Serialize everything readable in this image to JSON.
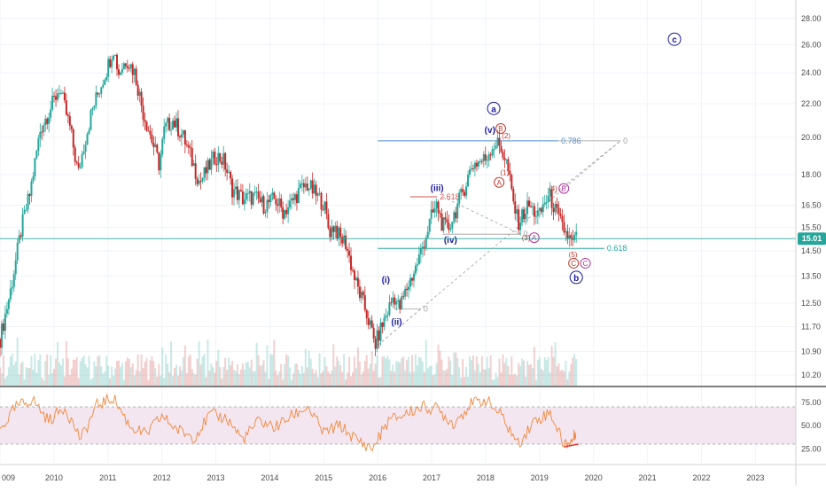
{
  "colors": {
    "up": "#26a69a",
    "down": "#c62828",
    "price_badge": "#26a69a",
    "rsi": "#f0883e",
    "rsi_band": "#f3e6f0",
    "wave_blue": "#1a1aa0",
    "wave_red": "#c0392b",
    "wave_pink": "#b03aa0",
    "fib_786": "#4f8fcf",
    "fib_618": "#26a69a",
    "fib_261": "#d9534f",
    "grid": "#f0f3fa"
  },
  "chart_data": {
    "type": "candlestick",
    "title": "",
    "x_axis": {
      "ticks": [
        "009",
        "2010",
        "2011",
        "2012",
        "2013",
        "2014",
        "2015",
        "2016",
        "2017",
        "2018",
        "2019",
        "2020",
        "2021",
        "2022",
        "2023"
      ],
      "tick_years": [
        2009.0,
        2010.0,
        2011.0,
        2012.0,
        2013.0,
        2014.0,
        2015.0,
        2016.0,
        2017.0,
        2018.0,
        2019.0,
        2020.0,
        2021.0,
        2022.0,
        2023.0
      ]
    },
    "price_axis": {
      "scale": "log",
      "range": [
        9.9,
        29.5
      ],
      "ticks": [
        "28.00",
        "26.00",
        "24.00",
        "22.00",
        "20.00",
        "18.00",
        "16.50",
        "15.50",
        "14.50",
        "13.50",
        "12.50",
        "11.70",
        "10.90",
        "10.20"
      ]
    },
    "last_price": {
      "value": 15.01,
      "label": "15.01"
    },
    "price_path": [
      {
        "x": 2009.0,
        "y": 11.3
      },
      {
        "x": 2009.2,
        "y": 13.0
      },
      {
        "x": 2009.4,
        "y": 15.5
      },
      {
        "x": 2009.55,
        "y": 17.0
      },
      {
        "x": 2009.75,
        "y": 20.5
      },
      {
        "x": 2009.95,
        "y": 21.8
      },
      {
        "x": 2010.1,
        "y": 23.0
      },
      {
        "x": 2010.3,
        "y": 20.5
      },
      {
        "x": 2010.45,
        "y": 18.0
      },
      {
        "x": 2010.55,
        "y": 19.5
      },
      {
        "x": 2010.7,
        "y": 21.5
      },
      {
        "x": 2010.85,
        "y": 23.0
      },
      {
        "x": 2011.0,
        "y": 24.5
      },
      {
        "x": 2011.1,
        "y": 25.8
      },
      {
        "x": 2011.2,
        "y": 24.0
      },
      {
        "x": 2011.35,
        "y": 25.0
      },
      {
        "x": 2011.5,
        "y": 24.0
      },
      {
        "x": 2011.65,
        "y": 21.5
      },
      {
        "x": 2011.8,
        "y": 20.0
      },
      {
        "x": 2011.95,
        "y": 18.5
      },
      {
        "x": 2012.05,
        "y": 20.5
      },
      {
        "x": 2012.2,
        "y": 21.0
      },
      {
        "x": 2012.4,
        "y": 20.0
      },
      {
        "x": 2012.55,
        "y": 18.8
      },
      {
        "x": 2012.7,
        "y": 17.6
      },
      {
        "x": 2012.85,
        "y": 18.3
      },
      {
        "x": 2013.0,
        "y": 19.0
      },
      {
        "x": 2013.15,
        "y": 18.7
      },
      {
        "x": 2013.3,
        "y": 17.3
      },
      {
        "x": 2013.5,
        "y": 16.8
      },
      {
        "x": 2013.7,
        "y": 16.9
      },
      {
        "x": 2013.9,
        "y": 16.5
      },
      {
        "x": 2014.1,
        "y": 16.8
      },
      {
        "x": 2014.25,
        "y": 16.2
      },
      {
        "x": 2014.4,
        "y": 16.6
      },
      {
        "x": 2014.55,
        "y": 17.2
      },
      {
        "x": 2014.7,
        "y": 17.5
      },
      {
        "x": 2014.85,
        "y": 17.0
      },
      {
        "x": 2015.0,
        "y": 16.6
      },
      {
        "x": 2015.1,
        "y": 15.3
      },
      {
        "x": 2015.2,
        "y": 15.6
      },
      {
        "x": 2015.3,
        "y": 15.0
      },
      {
        "x": 2015.4,
        "y": 14.9
      },
      {
        "x": 2015.5,
        "y": 14.0
      },
      {
        "x": 2015.6,
        "y": 13.2
      },
      {
        "x": 2015.75,
        "y": 12.4
      },
      {
        "x": 2015.85,
        "y": 11.8
      },
      {
        "x": 2015.95,
        "y": 11.1
      },
      {
        "x": 2016.05,
        "y": 11.6
      },
      {
        "x": 2016.2,
        "y": 12.3
      },
      {
        "x": 2016.3,
        "y": 12.8
      },
      {
        "x": 2016.4,
        "y": 12.3
      },
      {
        "x": 2016.55,
        "y": 13.1
      },
      {
        "x": 2016.7,
        "y": 13.8
      },
      {
        "x": 2016.85,
        "y": 14.8
      },
      {
        "x": 2017.0,
        "y": 16.0
      },
      {
        "x": 2017.1,
        "y": 16.5
      },
      {
        "x": 2017.2,
        "y": 15.6
      },
      {
        "x": 2017.3,
        "y": 15.4
      },
      {
        "x": 2017.45,
        "y": 16.3
      },
      {
        "x": 2017.6,
        "y": 17.3
      },
      {
        "x": 2017.75,
        "y": 18.5
      },
      {
        "x": 2017.9,
        "y": 18.7
      },
      {
        "x": 2018.0,
        "y": 18.8
      },
      {
        "x": 2018.1,
        "y": 19.4
      },
      {
        "x": 2018.2,
        "y": 19.7
      },
      {
        "x": 2018.3,
        "y": 19.3
      },
      {
        "x": 2018.4,
        "y": 18.5
      },
      {
        "x": 2018.5,
        "y": 16.8
      },
      {
        "x": 2018.6,
        "y": 15.7
      },
      {
        "x": 2018.7,
        "y": 16.1
      },
      {
        "x": 2018.8,
        "y": 16.5
      },
      {
        "x": 2018.9,
        "y": 16.2
      },
      {
        "x": 2019.0,
        "y": 16.0
      },
      {
        "x": 2019.1,
        "y": 16.7
      },
      {
        "x": 2019.2,
        "y": 16.9
      },
      {
        "x": 2019.3,
        "y": 16.2
      },
      {
        "x": 2019.4,
        "y": 15.6
      },
      {
        "x": 2019.5,
        "y": 15.2
      },
      {
        "x": 2019.6,
        "y": 14.8
      },
      {
        "x": 2019.68,
        "y": 15.01
      }
    ],
    "fib_levels": [
      {
        "label": "0.786",
        "value": 19.8,
        "x_start": 2016.0,
        "x_end": 2019.35,
        "color_key": "fib_786"
      },
      {
        "label": "0.618",
        "value": 14.6,
        "x_start": 2016.0,
        "x_end": 2020.2,
        "color_key": "fib_618"
      },
      {
        "label": "2.618",
        "value": 16.9,
        "x_start": 2016.6,
        "x_end": 2017.1,
        "color_key": "fib_261"
      },
      {
        "label": "0",
        "value": 19.8,
        "x_start": 2019.35,
        "x_end": 2020.5,
        "color_key": "grid"
      },
      {
        "label": "0",
        "value": 15.2,
        "x_start": 2017.2,
        "x_end": 2018.65,
        "color_key": "grid"
      },
      {
        "label": "0",
        "value": 12.3,
        "x_start": 2016.3,
        "x_end": 2016.8,
        "color_key": "grid"
      }
    ],
    "wave_labels": [
      {
        "text": "a",
        "x": 2018.15,
        "y": 21.7,
        "style": "circle-blue"
      },
      {
        "text": "(v)",
        "x": 2018.08,
        "y": 20.4,
        "style": "blue"
      },
      {
        "text": "B",
        "x": 2018.28,
        "y": 20.5,
        "style": "circle-red"
      },
      {
        "text": "(2)",
        "x": 2018.38,
        "y": 20.1,
        "style": "red"
      },
      {
        "text": "(1)",
        "x": 2018.35,
        "y": 18.1,
        "style": "red"
      },
      {
        "text": "A",
        "x": 2018.25,
        "y": 17.6,
        "style": "circle-red"
      },
      {
        "text": "(iii)",
        "x": 2017.1,
        "y": 17.3,
        "style": "blue"
      },
      {
        "text": "(iv)",
        "x": 2017.35,
        "y": 14.95,
        "style": "blue"
      },
      {
        "text": "(i)",
        "x": 2016.15,
        "y": 13.35,
        "style": "blue"
      },
      {
        "text": "(ii)",
        "x": 2016.35,
        "y": 11.85,
        "style": "blue"
      },
      {
        "text": "(3)",
        "x": 2018.75,
        "y": 15.05,
        "style": "red"
      },
      {
        "text": "A",
        "x": 2018.9,
        "y": 15.05,
        "style": "circle-pink"
      },
      {
        "text": "(4)",
        "x": 2019.25,
        "y": 17.3,
        "style": "red"
      },
      {
        "text": "B",
        "x": 2019.45,
        "y": 17.3,
        "style": "circle-pink"
      },
      {
        "text": "(5)",
        "x": 2019.62,
        "y": 14.35,
        "style": "red"
      },
      {
        "text": "C",
        "x": 2019.63,
        "y": 14.0,
        "style": "circle-red"
      },
      {
        "text": "C",
        "x": 2019.85,
        "y": 14.0,
        "style": "circle-pink"
      },
      {
        "text": "b",
        "x": 2019.68,
        "y": 13.45,
        "style": "circle-blue"
      },
      {
        "text": "c",
        "x": 2021.5,
        "y": 26.4,
        "style": "circle-blue"
      }
    ],
    "rsi": {
      "ticks": [
        "75.00",
        "50.00",
        "25.00"
      ],
      "tick_values": [
        75,
        50,
        25
      ],
      "range": [
        10,
        90
      ],
      "band": [
        30,
        70
      ],
      "path": [
        {
          "x": 2009.0,
          "y": 45
        },
        {
          "x": 2009.3,
          "y": 70
        },
        {
          "x": 2009.6,
          "y": 78
        },
        {
          "x": 2009.9,
          "y": 55
        },
        {
          "x": 2010.2,
          "y": 70
        },
        {
          "x": 2010.5,
          "y": 35
        },
        {
          "x": 2010.8,
          "y": 72
        },
        {
          "x": 2011.1,
          "y": 80
        },
        {
          "x": 2011.4,
          "y": 50
        },
        {
          "x": 2011.7,
          "y": 40
        },
        {
          "x": 2012.0,
          "y": 60
        },
        {
          "x": 2012.3,
          "y": 45
        },
        {
          "x": 2012.6,
          "y": 38
        },
        {
          "x": 2012.9,
          "y": 62
        },
        {
          "x": 2013.2,
          "y": 58
        },
        {
          "x": 2013.5,
          "y": 35
        },
        {
          "x": 2013.8,
          "y": 55
        },
        {
          "x": 2014.1,
          "y": 48
        },
        {
          "x": 2014.4,
          "y": 60
        },
        {
          "x": 2014.7,
          "y": 70
        },
        {
          "x": 2015.0,
          "y": 42
        },
        {
          "x": 2015.3,
          "y": 50
        },
        {
          "x": 2015.6,
          "y": 35
        },
        {
          "x": 2015.9,
          "y": 25
        },
        {
          "x": 2016.2,
          "y": 55
        },
        {
          "x": 2016.5,
          "y": 62
        },
        {
          "x": 2016.8,
          "y": 70
        },
        {
          "x": 2017.1,
          "y": 68
        },
        {
          "x": 2017.4,
          "y": 52
        },
        {
          "x": 2017.7,
          "y": 72
        },
        {
          "x": 2018.0,
          "y": 78
        },
        {
          "x": 2018.3,
          "y": 60
        },
        {
          "x": 2018.6,
          "y": 30
        },
        {
          "x": 2018.9,
          "y": 55
        },
        {
          "x": 2019.2,
          "y": 64
        },
        {
          "x": 2019.45,
          "y": 30
        },
        {
          "x": 2019.6,
          "y": 33
        },
        {
          "x": 2019.68,
          "y": 44
        }
      ],
      "divergence": [
        {
          "x": 2019.45,
          "y": 27
        },
        {
          "x": 2019.72,
          "y": 30
        }
      ]
    }
  }
}
